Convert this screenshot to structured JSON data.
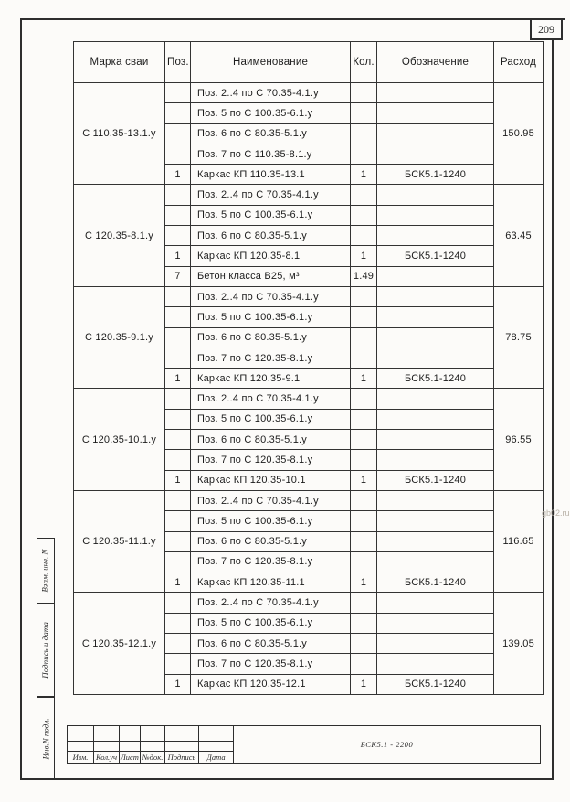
{
  "page": {
    "number": "209",
    "watermark": "gb02.ru",
    "title_block": {
      "document_code": "БСК5.1 - 2200",
      "bottom_labels": [
        "Изм.",
        "Кол.уч",
        "Лист",
        "№док.",
        "Подпись",
        "Дата"
      ],
      "side_labels": [
        "Взам. инв. N",
        "Подпись и дата",
        "Инв.N подл."
      ]
    }
  },
  "table": {
    "headers": [
      "Марка сваи",
      "Поз.",
      "Наименование",
      "Кол.",
      "Обозначение",
      "Расход"
    ],
    "groups": [
      {
        "mark": "С 110.35-13.1.у",
        "rashod": "150.95",
        "rows": [
          {
            "poz": "",
            "name": "Поз. 2..4 по С 70.35-4.1.у",
            "qty": "",
            "designation": ""
          },
          {
            "poz": "",
            "name": "Поз. 5 по С 100.35-6.1.у",
            "qty": "",
            "designation": ""
          },
          {
            "poz": "",
            "name": "Поз. 6 по С 80.35-5.1.у",
            "qty": "",
            "designation": ""
          },
          {
            "poz": "",
            "name": "Поз. 7 по С 110.35-8.1.у",
            "qty": "",
            "designation": ""
          },
          {
            "poz": "1",
            "name": "Каркас КП 110.35-13.1",
            "qty": "1",
            "designation": "БСК5.1-1240"
          }
        ]
      },
      {
        "mark": "С 120.35-8.1.у",
        "rashod": "63.45",
        "rows": [
          {
            "poz": "",
            "name": "Поз. 2..4 по С 70.35-4.1.у",
            "qty": "",
            "designation": ""
          },
          {
            "poz": "",
            "name": "Поз. 5 по С 100.35-6.1.у",
            "qty": "",
            "designation": ""
          },
          {
            "poz": "",
            "name": "Поз. 6 по С 80.35-5.1.у",
            "qty": "",
            "designation": ""
          },
          {
            "poz": "1",
            "name": "Каркас КП 120.35-8.1",
            "qty": "1",
            "designation": "БСК5.1-1240"
          },
          {
            "poz": "7",
            "name": "Бетон класса В25, м³",
            "qty": "1.49",
            "designation": ""
          }
        ]
      },
      {
        "mark": "С 120.35-9.1.у",
        "rashod": "78.75",
        "rows": [
          {
            "poz": "",
            "name": "Поз. 2..4 по С 70.35-4.1.у",
            "qty": "",
            "designation": ""
          },
          {
            "poz": "",
            "name": "Поз. 5 по С 100.35-6.1.у",
            "qty": "",
            "designation": ""
          },
          {
            "poz": "",
            "name": "Поз. 6 по С 80.35-5.1.у",
            "qty": "",
            "designation": ""
          },
          {
            "poz": "",
            "name": "Поз. 7 по С 120.35-8.1.у",
            "qty": "",
            "designation": ""
          },
          {
            "poz": "1",
            "name": "Каркас КП 120.35-9.1",
            "qty": "1",
            "designation": "БСК5.1-1240"
          }
        ]
      },
      {
        "mark": "С 120.35-10.1.у",
        "rashod": "96.55",
        "rows": [
          {
            "poz": "",
            "name": "Поз. 2..4 по С 70.35-4.1.у",
            "qty": "",
            "designation": ""
          },
          {
            "poz": "",
            "name": "Поз. 5 по С 100.35-6.1.у",
            "qty": "",
            "designation": ""
          },
          {
            "poz": "",
            "name": "Поз. 6 по С 80.35-5.1.у",
            "qty": "",
            "designation": ""
          },
          {
            "poz": "",
            "name": "Поз. 7 по С 120.35-8.1.у",
            "qty": "",
            "designation": ""
          },
          {
            "poz": "1",
            "name": "Каркас КП 120.35-10.1",
            "qty": "1",
            "designation": "БСК5.1-1240"
          }
        ]
      },
      {
        "mark": "С 120.35-11.1.у",
        "rashod": "116.65",
        "rows": [
          {
            "poz": "",
            "name": "Поз. 2..4 по С 70.35-4.1.у",
            "qty": "",
            "designation": ""
          },
          {
            "poz": "",
            "name": "Поз. 5 по С 100.35-6.1.у",
            "qty": "",
            "designation": ""
          },
          {
            "poz": "",
            "name": "Поз. 6 по С 80.35-5.1.у",
            "qty": "",
            "designation": ""
          },
          {
            "poz": "",
            "name": "Поз. 7 по С 120.35-8.1.у",
            "qty": "",
            "designation": ""
          },
          {
            "poz": "1",
            "name": "Каркас КП 120.35-11.1",
            "qty": "1",
            "designation": "БСК5.1-1240"
          }
        ]
      },
      {
        "mark": "С 120.35-12.1.у",
        "rashod": "139.05",
        "rows": [
          {
            "poz": "",
            "name": "Поз. 2..4 по С 70.35-4.1.у",
            "qty": "",
            "designation": ""
          },
          {
            "poz": "",
            "name": "Поз. 5 по С 100.35-6.1.у",
            "qty": "",
            "designation": ""
          },
          {
            "poz": "",
            "name": "Поз. 6 по С 80.35-5.1.у",
            "qty": "",
            "designation": ""
          },
          {
            "poz": "",
            "name": "Поз. 7 по С 120.35-8.1.у",
            "qty": "",
            "designation": ""
          },
          {
            "poz": "1",
            "name": "Каркас КП 120.35-12.1",
            "qty": "1",
            "designation": "БСК5.1-1240"
          }
        ]
      }
    ]
  }
}
